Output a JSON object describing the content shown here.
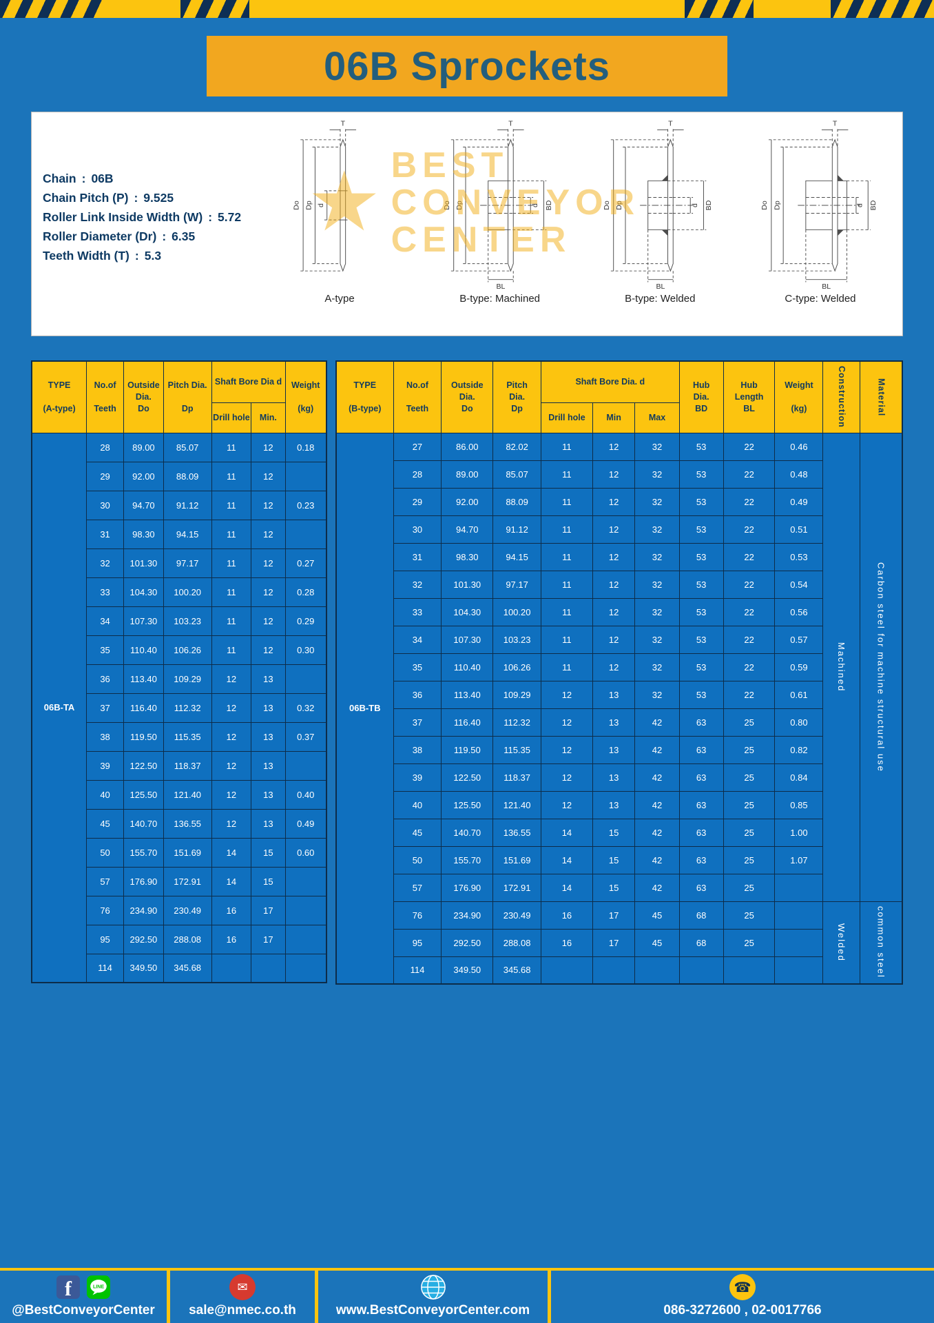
{
  "theme": {
    "page_blue": "#1b74ba",
    "accent_yellow": "#fcc40f",
    "banner_orange": "#f2a71f",
    "table_cell_blue": "#0f70bf",
    "header_text_navy": "#123a5e"
  },
  "title": "06B Sprockets",
  "spec_separator": ":",
  "specs": [
    {
      "label": "Chain",
      "value": "06B"
    },
    {
      "label": "Chain Pitch (P)",
      "value": "9.525"
    },
    {
      "label": "Roller Link Inside Width (W)",
      "value": "5.72"
    },
    {
      "label": "Roller Diameter (Dr)",
      "value": "6.35"
    },
    {
      "label": "Teeth Width (T)",
      "value": "5.3"
    }
  ],
  "watermark": {
    "star": "★",
    "lines": [
      "BEST",
      "CONVEYOR",
      "CENTER"
    ]
  },
  "drawings": {
    "captions": [
      "A-type",
      "B-type: Machined",
      "B-type: Welded",
      "C-type: Welded"
    ],
    "dim_labels": {
      "t": "T",
      "do": "Do",
      "dp": "Dp",
      "d": "d",
      "bd": "BD",
      "bl": "BL"
    }
  },
  "table_a": {
    "headers": {
      "type": "TYPE\n\n(A-type)",
      "teeth": "No.of\n\nTeeth",
      "outside": "Outside\nDia.\nDo",
      "pitch": "Pitch Dia.\n\nDp",
      "shaft": "Shaft Bore Dia d",
      "drill": "Drill hole",
      "min": "Min.",
      "weight": "Weight\n\n(kg)"
    },
    "spans": [
      {
        "pos": "pre",
        "row": 0,
        "rowspan": 19,
        "text": "06B-TA",
        "class": "type-val",
        "name": "type-a-value"
      }
    ],
    "rows": [
      [
        "28",
        "89.00",
        "85.07",
        "11",
        "12",
        "0.18"
      ],
      [
        "29",
        "92.00",
        "88.09",
        "11",
        "12",
        ""
      ],
      [
        "30",
        "94.70",
        "91.12",
        "11",
        "12",
        "0.23"
      ],
      [
        "31",
        "98.30",
        "94.15",
        "11",
        "12",
        ""
      ],
      [
        "32",
        "101.30",
        "97.17",
        "11",
        "12",
        "0.27"
      ],
      [
        "33",
        "104.30",
        "100.20",
        "11",
        "12",
        "0.28"
      ],
      [
        "34",
        "107.30",
        "103.23",
        "11",
        "12",
        "0.29"
      ],
      [
        "35",
        "110.40",
        "106.26",
        "11",
        "12",
        "0.30"
      ],
      [
        "36",
        "113.40",
        "109.29",
        "12",
        "13",
        ""
      ],
      [
        "37",
        "116.40",
        "112.32",
        "12",
        "13",
        "0.32"
      ],
      [
        "38",
        "119.50",
        "115.35",
        "12",
        "13",
        "0.37"
      ],
      [
        "39",
        "122.50",
        "118.37",
        "12",
        "13",
        ""
      ],
      [
        "40",
        "125.50",
        "121.40",
        "12",
        "13",
        "0.40"
      ],
      [
        "45",
        "140.70",
        "136.55",
        "12",
        "13",
        "0.49"
      ],
      [
        "50",
        "155.70",
        "151.69",
        "14",
        "15",
        "0.60"
      ],
      [
        "57",
        "176.90",
        "172.91",
        "14",
        "15",
        ""
      ],
      [
        "76",
        "234.90",
        "230.49",
        "16",
        "17",
        ""
      ],
      [
        "95",
        "292.50",
        "288.08",
        "16",
        "17",
        ""
      ],
      [
        "114",
        "349.50",
        "345.68",
        "",
        "",
        ""
      ]
    ]
  },
  "table_b": {
    "headers": {
      "type": "TYPE\n\n(B-type)",
      "teeth": "No.of\n\nTeeth",
      "outside": "Outside\nDia.\nDo",
      "pitch": "Pitch\nDia.\nDp",
      "shaft": "Shaft Bore Dia. d",
      "drill": "Drill hole",
      "min": "Min",
      "max": "Max",
      "hub_dia": "Hub\nDia.\nBD",
      "hub_length": "Hub\nLength\nBL",
      "weight": "Weight\n\n(kg)",
      "construction": "Construction",
      "material": "Material"
    },
    "spans": [
      {
        "pos": "pre",
        "row": 0,
        "rowspan": 20,
        "text": "06B-TB",
        "class": "type-val",
        "name": "type-b-value"
      },
      {
        "pos": "post",
        "row": 0,
        "rowspan": 17,
        "text": "Machined",
        "class": "vert-cell",
        "name": "construction-machined"
      },
      {
        "pos": "post",
        "row": 0,
        "rowspan": 17,
        "text": "Carbon steel for machine structural use",
        "class": "vert-cell",
        "name": "material-carbon-steel"
      },
      {
        "pos": "post",
        "row": 17,
        "rowspan": 3,
        "text": "Welded",
        "class": "vert-cell",
        "name": "construction-welded"
      },
      {
        "pos": "post",
        "row": 17,
        "rowspan": 3,
        "text": "common steel",
        "class": "vert-cell",
        "name": "material-common-steel"
      }
    ],
    "rows": [
      [
        "27",
        "86.00",
        "82.02",
        "11",
        "12",
        "32",
        "53",
        "22",
        "0.46"
      ],
      [
        "28",
        "89.00",
        "85.07",
        "11",
        "12",
        "32",
        "53",
        "22",
        "0.48"
      ],
      [
        "29",
        "92.00",
        "88.09",
        "11",
        "12",
        "32",
        "53",
        "22",
        "0.49"
      ],
      [
        "30",
        "94.70",
        "91.12",
        "11",
        "12",
        "32",
        "53",
        "22",
        "0.51"
      ],
      [
        "31",
        "98.30",
        "94.15",
        "11",
        "12",
        "32",
        "53",
        "22",
        "0.53"
      ],
      [
        "32",
        "101.30",
        "97.17",
        "11",
        "12",
        "32",
        "53",
        "22",
        "0.54"
      ],
      [
        "33",
        "104.30",
        "100.20",
        "11",
        "12",
        "32",
        "53",
        "22",
        "0.56"
      ],
      [
        "34",
        "107.30",
        "103.23",
        "11",
        "12",
        "32",
        "53",
        "22",
        "0.57"
      ],
      [
        "35",
        "110.40",
        "106.26",
        "11",
        "12",
        "32",
        "53",
        "22",
        "0.59"
      ],
      [
        "36",
        "113.40",
        "109.29",
        "12",
        "13",
        "32",
        "53",
        "22",
        "0.61"
      ],
      [
        "37",
        "116.40",
        "112.32",
        "12",
        "13",
        "42",
        "63",
        "25",
        "0.80"
      ],
      [
        "38",
        "119.50",
        "115.35",
        "12",
        "13",
        "42",
        "63",
        "25",
        "0.82"
      ],
      [
        "39",
        "122.50",
        "118.37",
        "12",
        "13",
        "42",
        "63",
        "25",
        "0.84"
      ],
      [
        "40",
        "125.50",
        "121.40",
        "12",
        "13",
        "42",
        "63",
        "25",
        "0.85"
      ],
      [
        "45",
        "140.70",
        "136.55",
        "14",
        "15",
        "42",
        "63",
        "25",
        "1.00"
      ],
      [
        "50",
        "155.70",
        "151.69",
        "14",
        "15",
        "42",
        "63",
        "25",
        "1.07"
      ],
      [
        "57",
        "176.90",
        "172.91",
        "14",
        "15",
        "42",
        "63",
        "25",
        ""
      ],
      [
        "76",
        "234.90",
        "230.49",
        "16",
        "17",
        "45",
        "68",
        "25",
        ""
      ],
      [
        "95",
        "292.50",
        "288.08",
        "16",
        "17",
        "45",
        "68",
        "25",
        ""
      ],
      [
        "114",
        "349.50",
        "345.68",
        "",
        "",
        "",
        "",
        "",
        ""
      ]
    ]
  },
  "footer": {
    "handle": "@BestConveyorCenter",
    "email": "sale@nmec.co.th",
    "website": "www.BestConveyorCenter.com",
    "phones": "086-3272600 , 02-0017766",
    "icons": {
      "facebook_glyph": "f",
      "line_label": "LINE",
      "email_glyph": "✉",
      "phone_glyph": "☎"
    }
  }
}
